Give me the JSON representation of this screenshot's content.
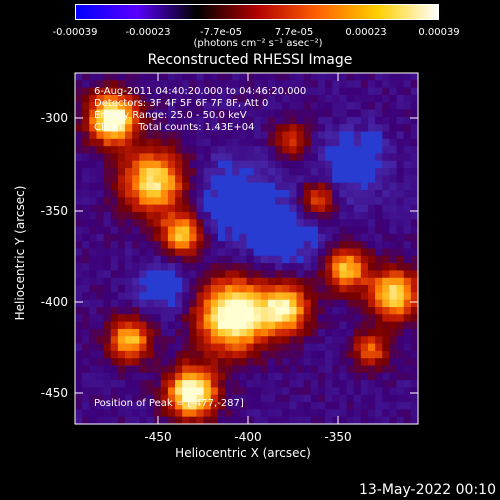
{
  "colorbar": {
    "tick_labels": [
      "-0.00039",
      "-0.00023",
      "-7.7e-05",
      "7.7e-05",
      "0.00023",
      "0.00039"
    ],
    "units": "(photons cm⁻² s⁻¹ asec⁻²)",
    "colors": [
      "#0000ff",
      "#5a00ff",
      "#000000",
      "#b00000",
      "#ff6000",
      "#ffd000",
      "#ffffff"
    ]
  },
  "title": "Reconstructed RHESSI Image",
  "info": {
    "line1": "6-Aug-2011 04:40:20.000 to 04:46:20.000",
    "line2": "Detectors: 3F 4F 5F 6F 7F 8F, Att 0",
    "line3": "Energy Range: 25.0 - 50.0 keV",
    "line4": "Clean     Total counts: 1.43E+04",
    "peak": "Position of Peak = [-477,-287]"
  },
  "axes": {
    "xlabel": "Heliocentric X (arcsec)",
    "ylabel": "Heliocentric Y (arcsec)",
    "x_ticks": [
      "-450",
      "-400",
      "-350"
    ],
    "y_ticks": [
      "-300",
      "-350",
      "-400",
      "-450"
    ]
  },
  "footer": {
    "date": "13-May-2022 00:10"
  }
}
